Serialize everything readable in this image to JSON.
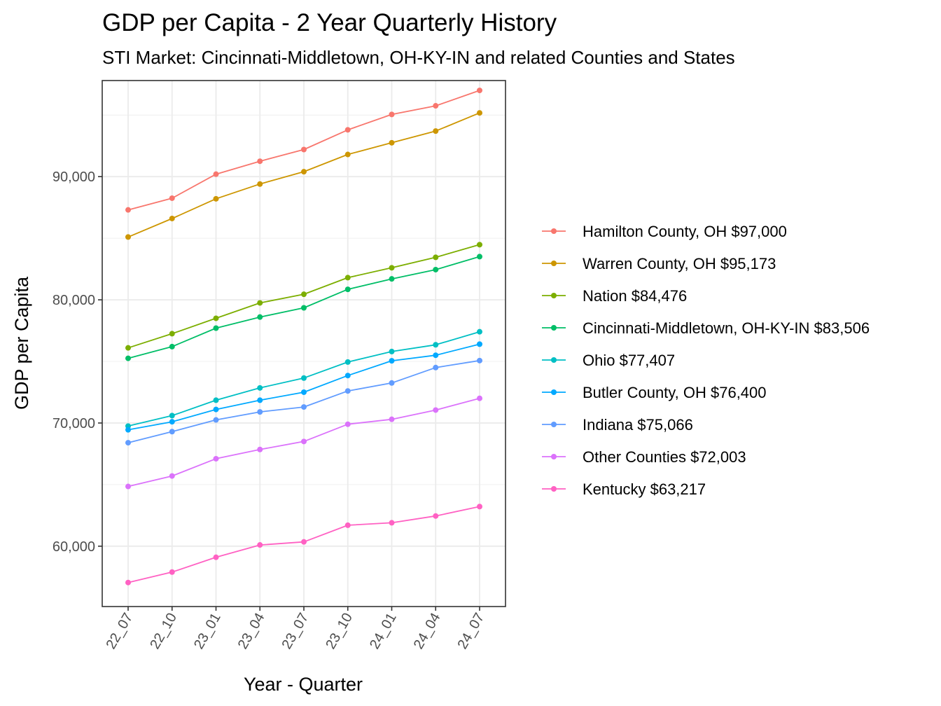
{
  "chart_data": {
    "type": "line",
    "title": "GDP per Capita - 2 Year Quarterly History",
    "subtitle": "STI Market: Cincinnati-Middletown, OH-KY-IN and related Counties and States",
    "xlabel": "Year - Quarter",
    "ylabel": "GDP per Capita",
    "categories": [
      "22_07",
      "22_10",
      "23_01",
      "23_04",
      "23_07",
      "23_10",
      "24_01",
      "24_04",
      "24_07"
    ],
    "ylim": [
      55100,
      97800
    ],
    "yticks": [
      60000,
      70000,
      80000,
      90000
    ],
    "ytick_labels": [
      "60,000",
      "70,000",
      "80,000",
      "90,000"
    ],
    "grid": true,
    "legend_position": "right",
    "series": [
      {
        "name": "Hamilton County, OH $97,000",
        "color": "#F8766D",
        "values": [
          87300,
          88250,
          90200,
          91250,
          92200,
          93800,
          95050,
          95750,
          97000
        ]
      },
      {
        "name": "Warren County, OH $95,173",
        "color": "#CD9600",
        "values": [
          85100,
          86600,
          88200,
          89400,
          90400,
          91800,
          92750,
          93700,
          95173
        ]
      },
      {
        "name": "Nation $84,476",
        "color": "#7CAE00",
        "values": [
          76100,
          77250,
          78500,
          79750,
          80450,
          81800,
          82600,
          83450,
          84476
        ]
      },
      {
        "name": "Cincinnati-Middletown, OH-KY-IN $83,506",
        "color": "#00BE67",
        "values": [
          75250,
          76200,
          77700,
          78600,
          79350,
          80850,
          81700,
          82450,
          83506
        ]
      },
      {
        "name": "Ohio $77,407",
        "color": "#00BFC4",
        "values": [
          69750,
          70600,
          71850,
          72850,
          73650,
          74950,
          75800,
          76350,
          77407
        ]
      },
      {
        "name": "Butler County, OH $76,400",
        "color": "#00A9FF",
        "values": [
          69450,
          70100,
          71100,
          71850,
          72500,
          73850,
          75050,
          75500,
          76400
        ]
      },
      {
        "name": "Indiana $75,066",
        "color": "#619CFF",
        "values": [
          68400,
          69300,
          70250,
          70900,
          71300,
          72600,
          73250,
          74500,
          75066
        ]
      },
      {
        "name": "Other Counties $72,003",
        "color": "#DB72FB",
        "values": [
          64850,
          65700,
          67100,
          67850,
          68500,
          69900,
          70300,
          71050,
          72003
        ]
      },
      {
        "name": "Kentucky $63,217",
        "color": "#FF61C3",
        "values": [
          57050,
          57900,
          59100,
          60100,
          60350,
          61700,
          61900,
          62450,
          63217
        ]
      }
    ]
  }
}
